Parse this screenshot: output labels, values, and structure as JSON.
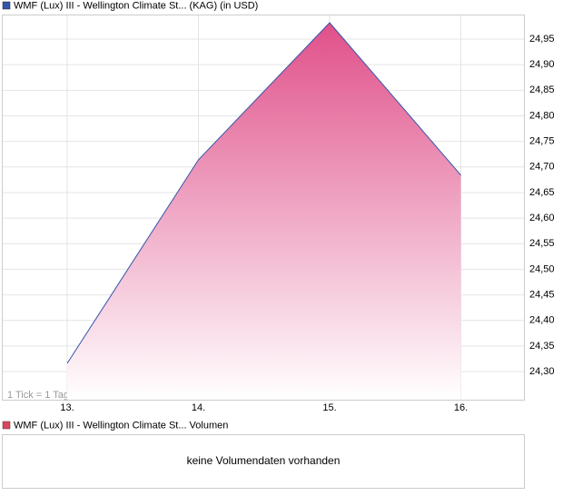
{
  "chart_data": {
    "type": "area",
    "title": "WMF (Lux) III - Wellington Climate St... (KAG) (in USD)",
    "categories": [
      "13.",
      "14.",
      "15.",
      "16."
    ],
    "values": [
      24.316,
      24.714,
      24.982,
      24.684
    ],
    "color": "#3355aa",
    "fill_color": "#e0508a",
    "ylim": [
      24.245,
      24.998
    ],
    "yticks": [
      {
        "value": 24.3,
        "label": "24,30"
      },
      {
        "value": 24.35,
        "label": "24,35"
      },
      {
        "value": 24.4,
        "label": "24,40"
      },
      {
        "value": 24.45,
        "label": "24,45"
      },
      {
        "value": 24.5,
        "label": "24,50"
      },
      {
        "value": 24.55,
        "label": "24,55"
      },
      {
        "value": 24.6,
        "label": "24,60"
      },
      {
        "value": 24.65,
        "label": "24,65"
      },
      {
        "value": 24.7,
        "label": "24,70"
      },
      {
        "value": 24.75,
        "label": "24,75"
      },
      {
        "value": 24.8,
        "label": "24,80"
      },
      {
        "value": 24.85,
        "label": "24,85"
      },
      {
        "value": 24.9,
        "label": "24,90"
      },
      {
        "value": 24.95,
        "label": "24,95"
      }
    ],
    "grid": true,
    "annotation": "1 Tick = 1 Tag"
  },
  "volume_panel": {
    "title": "WMF (Lux) III - Wellington Climate St... Volumen",
    "color": "#d9455f",
    "message": "keine Volumendaten vorhanden"
  }
}
